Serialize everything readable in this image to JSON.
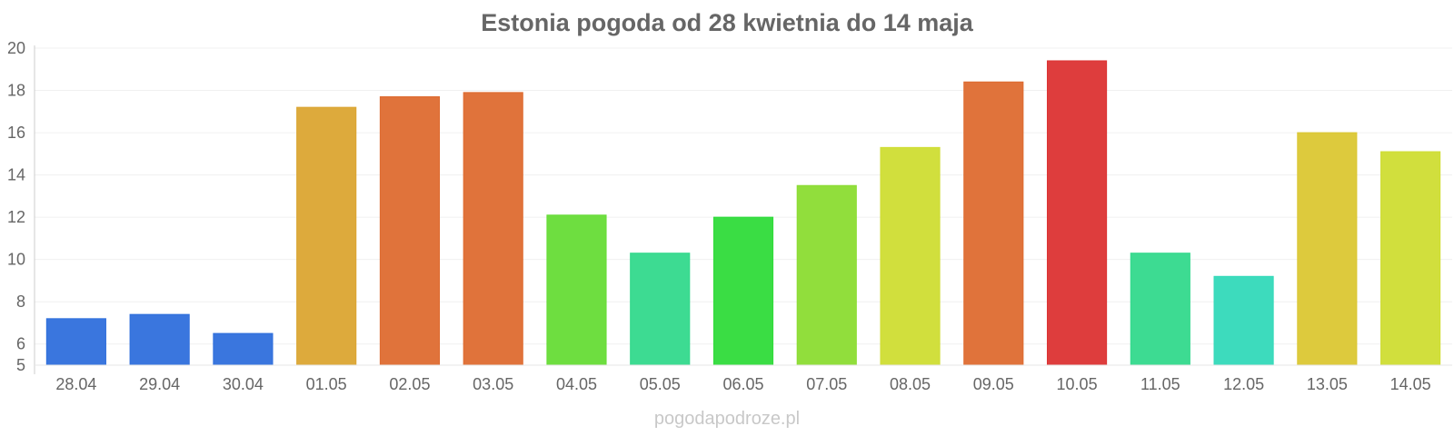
{
  "chart_data": {
    "type": "bar",
    "title": "Estonia pogoda od 28 kwietnia do 14 maja",
    "xlabel": "",
    "ylabel": "",
    "categories": [
      "28.04",
      "29.04",
      "30.04",
      "01.05",
      "02.05",
      "03.05",
      "04.05",
      "05.05",
      "06.05",
      "07.05",
      "08.05",
      "09.05",
      "10.05",
      "11.05",
      "12.05",
      "13.05",
      "14.05"
    ],
    "values": [
      7.2,
      7.4,
      6.5,
      17.2,
      17.7,
      17.9,
      12.1,
      10.3,
      12.0,
      13.5,
      15.3,
      18.4,
      19.4,
      10.3,
      9.2,
      16.0,
      15.1
    ],
    "colors": [
      "#2f6fdc",
      "#2f6fdc",
      "#2f6fdc",
      "#dba532",
      "#de6b30",
      "#de6b30",
      "#66dc36",
      "#33d98c",
      "#2fdb3a",
      "#8bdc32",
      "#cfdd33",
      "#de6b30",
      "#dc3333",
      "#33d98c",
      "#33d9b9",
      "#dbc733",
      "#cfdd33"
    ],
    "yticks": [
      5,
      6,
      8,
      10,
      12,
      14,
      16,
      18,
      20
    ],
    "ylim": [
      5,
      20
    ],
    "grid": true,
    "legend": "none"
  },
  "watermark": "pogodapodroze.pl"
}
